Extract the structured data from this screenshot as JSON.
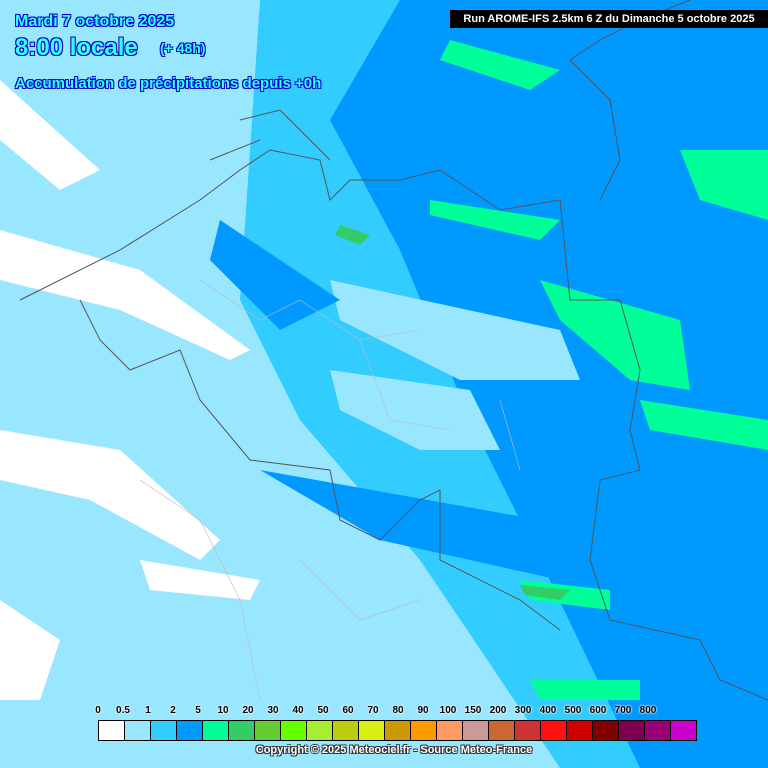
{
  "header": {
    "date": "Mardi 7 octobre 2025",
    "time": "8:00 locale",
    "lead": "(+ 48h)",
    "parameter": "Accumulation de précipitations depuis +0h",
    "run": "Run AROME-IFS 2.5km 6 Z du Dimanche 5 octobre 2025"
  },
  "legend": {
    "labels": [
      "0",
      "0.5",
      "1",
      "2",
      "5",
      "10",
      "20",
      "30",
      "40",
      "50",
      "60",
      "70",
      "80",
      "90",
      "100",
      "150",
      "200",
      "300",
      "400",
      "500",
      "600",
      "700",
      "800"
    ],
    "colors": [
      "#ffffff",
      "#99e6ff",
      "#33ccff",
      "#0099ff",
      "#00ff99",
      "#33cc66",
      "#66cc33",
      "#66ff00",
      "#a6ee33",
      "#bbcc11",
      "#d9ee11",
      "#cc9900",
      "#ff9900",
      "#ff9966",
      "#cc9999",
      "#cc6633",
      "#cc3333",
      "#ff1111",
      "#cc0000",
      "#800000",
      "#800050",
      "#990077",
      "#cc00cc"
    ]
  },
  "footer": {
    "copyright": "Copyright © 2025 Meteociel.fr - Source Meteo-France"
  }
}
